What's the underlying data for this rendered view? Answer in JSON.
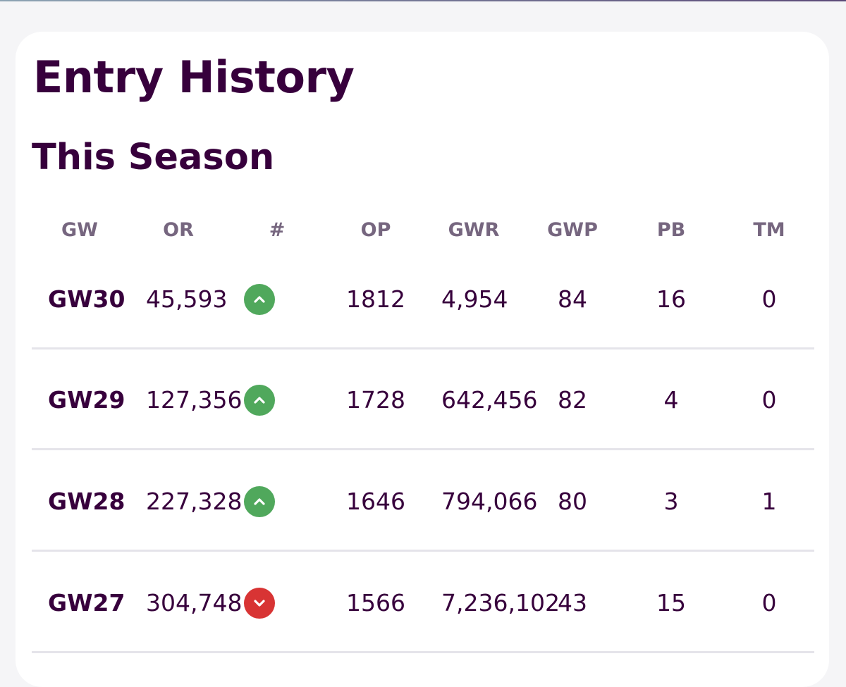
{
  "header": {
    "title": "Entry History",
    "section": "This Season"
  },
  "table": {
    "columns": [
      "GW",
      "OR",
      "#",
      "OP",
      "GWR",
      "GWP",
      "PB",
      "TM"
    ],
    "rows": [
      {
        "gw": "GW30",
        "or": "45,593",
        "movement": "up",
        "op": "1812",
        "gwr": "4,954",
        "gwp": "84",
        "pb": "16",
        "tm": "0"
      },
      {
        "gw": "GW29",
        "or": "127,356",
        "movement": "up",
        "op": "1728",
        "gwr": "642,456",
        "gwp": "82",
        "pb": "4",
        "tm": "0"
      },
      {
        "gw": "GW28",
        "or": "227,328",
        "movement": "up",
        "op": "1646",
        "gwr": "794,066",
        "gwp": "80",
        "pb": "3",
        "tm": "1"
      },
      {
        "gw": "GW27",
        "or": "304,748",
        "movement": "down",
        "op": "1566",
        "gwr": "7,236,102",
        "gwp": "43",
        "pb": "15",
        "tm": "0"
      }
    ]
  },
  "colors": {
    "primary": "#37003c",
    "header_text": "#76667f",
    "up": "#50a85c",
    "down": "#d83434",
    "divider": "#e5e4ea"
  },
  "icons": {
    "up": "chevron-up-icon",
    "down": "chevron-down-icon"
  }
}
